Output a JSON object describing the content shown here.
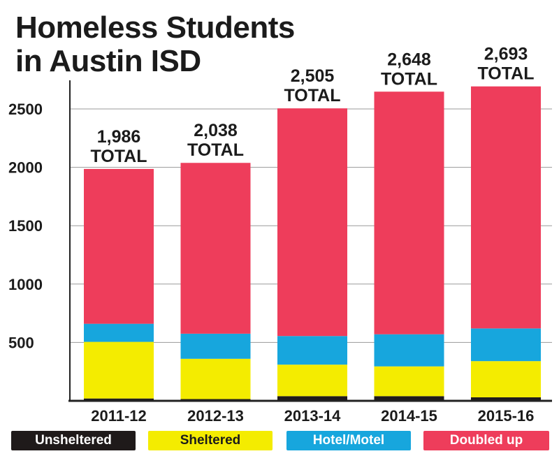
{
  "chart_data": {
    "type": "bar",
    "stacked": true,
    "title_lines": [
      "Homeless Students",
      "in Austin ISD"
    ],
    "categories": [
      "2011-12",
      "2012-13",
      "2013-14",
      "2014-15",
      "2015-16"
    ],
    "series": [
      {
        "name": "Unsheltered",
        "color": "#1f1a1a",
        "values": [
          20,
          15,
          40,
          40,
          30
        ]
      },
      {
        "name": "Sheltered",
        "color": "#f4ec00",
        "values": [
          485,
          345,
          270,
          255,
          310
        ]
      },
      {
        "name": "Hotel/Motel",
        "color": "#17a6dd",
        "values": [
          155,
          215,
          245,
          275,
          280
        ]
      },
      {
        "name": "Doubled up",
        "color": "#ee3d5b",
        "values": [
          1326,
          1463,
          1950,
          2078,
          2073
        ]
      }
    ],
    "totals": [
      1986,
      2038,
      2505,
      2648,
      2693
    ],
    "total_labels": [
      "1,986",
      "2,038",
      "2,505",
      "2,648",
      "2,693"
    ],
    "total_word": "TOTAL",
    "y_ticks": [
      500,
      1000,
      1500,
      2000,
      2500
    ],
    "ylim": [
      0,
      2700
    ],
    "grid": true,
    "legend_position": "bottom"
  }
}
